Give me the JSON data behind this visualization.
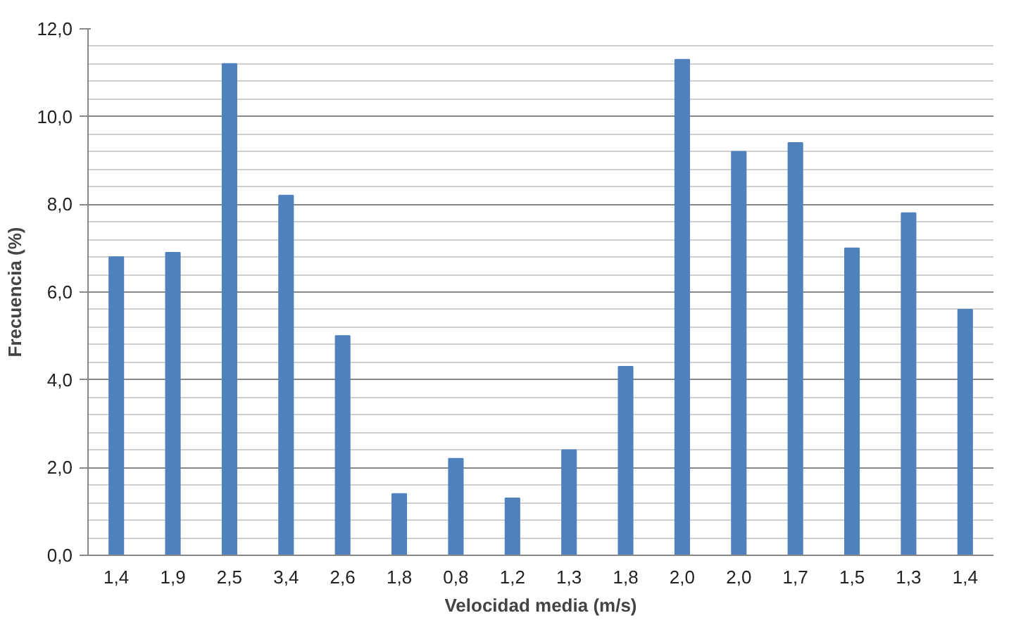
{
  "chart_data": {
    "type": "bar",
    "xlabel": "Velocidad media (m/s)",
    "ylabel": "Frecuencia (%)",
    "categories": [
      "1,4",
      "1,9",
      "2,5",
      "3,4",
      "2,6",
      "1,8",
      "0,8",
      "1,2",
      "1,3",
      "1,8",
      "2,0",
      "2,0",
      "1,7",
      "1,5",
      "1,3",
      "1,4"
    ],
    "values": [
      6.8,
      6.9,
      11.2,
      8.2,
      5.0,
      1.4,
      2.2,
      1.3,
      2.4,
      4.3,
      11.3,
      9.2,
      9.4,
      7.0,
      7.8,
      5.6
    ],
    "color": "#4f81bd",
    "ylim": [
      0,
      12
    ],
    "yticks": [
      {
        "value": 0,
        "label": "0,0"
      },
      {
        "value": 2,
        "label": "2,0"
      },
      {
        "value": 4,
        "label": "4,0"
      },
      {
        "value": 6,
        "label": "6,0"
      },
      {
        "value": 8,
        "label": "8,0"
      },
      {
        "value": 10,
        "label": "10,0"
      },
      {
        "value": 12,
        "label": "12,0"
      }
    ],
    "grid": "y"
  }
}
